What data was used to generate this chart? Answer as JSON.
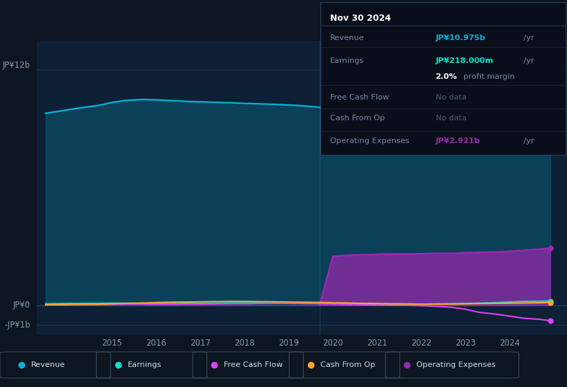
{
  "bg_color": "#0d1520",
  "plot_bg_color": "#0d2035",
  "title": "Nov 30 2024",
  "y_label_top": "JP¥12b",
  "y_label_zero": "JP¥0",
  "y_label_bottom": "-JP¥1b",
  "years": [
    2013.5,
    2013.8,
    2014.2,
    2014.7,
    2015.0,
    2015.3,
    2015.7,
    2016.0,
    2016.3,
    2016.7,
    2017.0,
    2017.3,
    2017.7,
    2018.0,
    2018.3,
    2018.7,
    2019.0,
    2019.3,
    2019.7,
    2020.0,
    2020.3,
    2020.7,
    2021.0,
    2021.3,
    2021.7,
    2022.0,
    2022.3,
    2022.7,
    2023.0,
    2023.3,
    2023.7,
    2024.0,
    2024.3,
    2024.7,
    2024.92
  ],
  "revenue": [
    9.8,
    9.9,
    10.05,
    10.2,
    10.35,
    10.45,
    10.5,
    10.48,
    10.45,
    10.4,
    10.38,
    10.36,
    10.33,
    10.3,
    10.28,
    10.25,
    10.22,
    10.18,
    10.1,
    9.9,
    9.7,
    9.5,
    9.35,
    9.25,
    9.15,
    9.1,
    9.3,
    9.6,
    9.9,
    10.1,
    10.3,
    10.55,
    10.7,
    10.85,
    10.975
  ],
  "earnings": [
    0.08,
    0.09,
    0.1,
    0.1,
    0.11,
    0.11,
    0.1,
    0.1,
    0.09,
    0.1,
    0.1,
    0.11,
    0.12,
    0.12,
    0.13,
    0.13,
    0.12,
    0.12,
    0.11,
    0.1,
    0.09,
    0.08,
    0.08,
    0.07,
    0.07,
    0.06,
    0.07,
    0.08,
    0.09,
    0.11,
    0.14,
    0.17,
    0.2,
    0.21,
    0.218
  ],
  "free_cash_flow": [
    0.03,
    0.03,
    0.04,
    0.04,
    0.05,
    0.06,
    0.06,
    0.05,
    0.05,
    0.06,
    0.06,
    0.07,
    0.08,
    0.08,
    0.09,
    0.1,
    0.1,
    0.09,
    0.08,
    0.07,
    0.05,
    0.03,
    0.02,
    0.01,
    0.0,
    -0.02,
    -0.05,
    -0.1,
    -0.2,
    -0.35,
    -0.45,
    -0.55,
    -0.65,
    -0.72,
    -0.78
  ],
  "cash_from_op": [
    0.03,
    0.04,
    0.05,
    0.06,
    0.08,
    0.1,
    0.12,
    0.14,
    0.16,
    0.17,
    0.18,
    0.19,
    0.2,
    0.2,
    0.19,
    0.18,
    0.17,
    0.16,
    0.15,
    0.13,
    0.12,
    0.1,
    0.09,
    0.08,
    0.07,
    0.06,
    0.06,
    0.07,
    0.08,
    0.09,
    0.1,
    0.11,
    0.12,
    0.13,
    0.15
  ],
  "op_expenses": [
    0.0,
    0.0,
    0.0,
    0.0,
    0.0,
    0.0,
    0.0,
    0.0,
    0.0,
    0.0,
    0.0,
    0.0,
    0.0,
    0.0,
    0.0,
    0.0,
    0.0,
    0.0,
    0.0,
    2.5,
    2.55,
    2.58,
    2.6,
    2.62,
    2.62,
    2.63,
    2.65,
    2.65,
    2.68,
    2.7,
    2.72,
    2.75,
    2.8,
    2.87,
    2.921
  ],
  "revenue_color": "#00b4d8",
  "earnings_color": "#00e5cc",
  "free_cash_flow_color": "#e040fb",
  "cash_from_op_color": "#ffa726",
  "op_expenses_color": "#9c27b0",
  "x_ticks": [
    2015,
    2016,
    2017,
    2018,
    2019,
    2020,
    2021,
    2022,
    2023,
    2024
  ],
  "ylim": [
    -1.5,
    13.5
  ],
  "xlim_start": 2013.3,
  "xlim_end": 2025.3,
  "info_box": {
    "date": "Nov 30 2024",
    "revenue_val": "JP¥10.975b",
    "revenue_unit": "/yr",
    "earnings_val": "JP¥218.000m",
    "earnings_unit": "/yr",
    "profit_pct": "2.0%",
    "profit_label": "profit margin",
    "fcf_val": "No data",
    "cfop_val": "No data",
    "opex_val": "JP¥2.921b",
    "opex_unit": "/yr"
  },
  "legend_items": [
    {
      "label": "Revenue",
      "color": "#00b4d8"
    },
    {
      "label": "Earnings",
      "color": "#00e5cc"
    },
    {
      "label": "Free Cash Flow",
      "color": "#e040fb"
    },
    {
      "label": "Cash From Op",
      "color": "#ffa726"
    },
    {
      "label": "Operating Expenses",
      "color": "#9c27b0"
    }
  ]
}
